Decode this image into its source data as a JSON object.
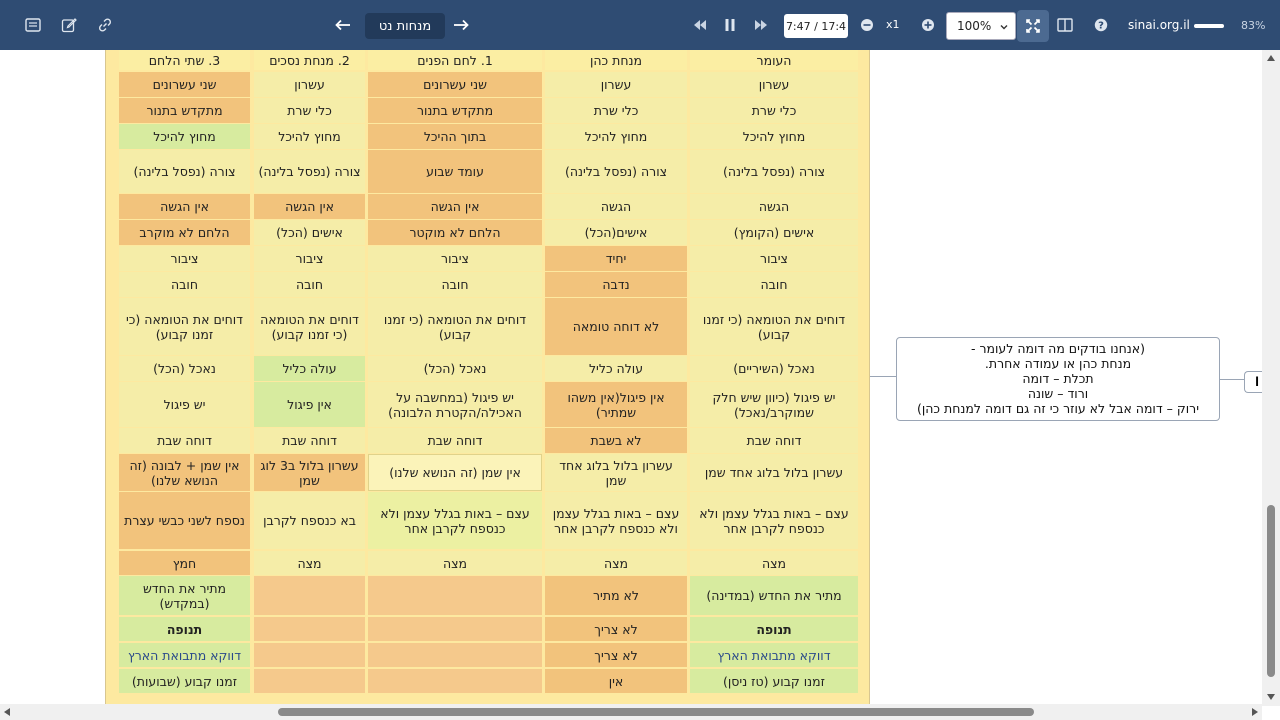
{
  "toolbar": {
    "title": "מנחות נט",
    "time": "7:47 / 17:4",
    "speed": "x1",
    "zoom": "100%",
    "site": "sinai.org.il",
    "volume_percent": "83%",
    "volume_level": 0.83,
    "icons": [
      "menu-icon",
      "edit-icon",
      "link-icon",
      "arrow-left-icon",
      "arrow-right-icon",
      "skip-back-icon",
      "pause-icon",
      "skip-forward-icon",
      "zoom-out-icon",
      "zoom-in-icon",
      "fit-screen-icon",
      "split-view-icon",
      "help-icon"
    ]
  },
  "table": {
    "headers": [
      "העומר",
      "מנחת כהן",
      "1. לחם הפנים",
      "2. מנחת נסכים",
      "3. שתי הלחם"
    ],
    "rows": [
      [
        "עשרון",
        "עשרון",
        "שני עשרונים",
        "עשרון",
        "שני עשרונים"
      ],
      [
        "כלי שרת",
        "כלי שרת",
        "מתקדש בתנור",
        "כלי שרת",
        "מתקדש בתנור"
      ],
      [
        "מחוץ להיכל",
        "מחוץ להיכל",
        "בתוך ההיכל",
        "מחוץ להיכל",
        "מחוץ להיכל"
      ],
      [
        "צורה (נפסל בלינה)",
        "צורה (נפסל בלינה)",
        "עומד שבוע",
        "צורה (נפסל בלינה)",
        "צורה (נפסל בלינה)"
      ],
      [
        "הגשה",
        "הגשה",
        "אין הגשה",
        "אין הגשה",
        "אין הגשה"
      ],
      [
        "אישים (הקומץ)",
        "אישים(הכל)",
        "הלחם לא מוקטר",
        "אישים (הכל)",
        "הלחם לא מוקרב"
      ],
      [
        "ציבור",
        "יחיד",
        "ציבור",
        "ציבור",
        "ציבור"
      ],
      [
        "חובה",
        "נדבה",
        "חובה",
        "חובה",
        "חובה"
      ],
      [
        "דוחים את הטומאה (כי זמנו קבוע)",
        "לא דוחה טומאה",
        "דוחים את הטומאה (כי זמנו קבוע)",
        "דוחים את הטומאה (כי זמנו קבוע)",
        "דוחים את הטומאה (כי זמנו קבוע)"
      ],
      [
        "נאכל (השיריים)",
        "עולה כליל",
        "נאכל (הכל)",
        "עולה כליל",
        "נאכל (הכל)"
      ],
      [
        "יש פיגול (כיוון שיש חלק שמוקרב/נאכל)",
        "אין פיגול(אין משהו שמתיר)",
        "יש פיגול (במחשבה על האכילה/הקטרת הלבונה)",
        "אין פיגול",
        "יש פיגול"
      ],
      [
        "דוחה שבת",
        "לא בשבת",
        "דוחה שבת",
        "דוחה שבת",
        "דוחה שבת"
      ],
      [
        "עשרון בלול בלוג אחד שמן",
        "עשרון בלול בלוג אחד שמן",
        "אין שמן (זה הנושא שלנו)",
        "עשרון בלול ב3 לוג שמן",
        "אין שמן + לבונה (זה הנושא שלנו)"
      ],
      [
        "עצם – באות בגלל עצמן ולא כנספח לקרבן אחר",
        "עצם – באות בגלל עצמן ולא כנספח לקרבן אחר",
        "עצם – באות בגלל עצמן ולא כנספח לקרבן אחר",
        "בא כנספח לקרבן",
        "נספח לשני כבשי עצרת"
      ],
      [
        "מצה",
        "מצה",
        "מצה",
        "מצה",
        "חמץ"
      ],
      [
        "מתיר את החדש (במדינה)",
        "לא מתיר",
        "",
        "",
        "מתיר את החדש (במקדש)"
      ],
      [
        "תנופה",
        "לא צריך",
        "",
        "",
        "תנופה"
      ],
      [
        "דווקא מתבואת הארץ",
        "לא צריך",
        "",
        "",
        "דווקא מתבואת הארץ"
      ],
      [
        "זמנו קבוע (טז ניסן)",
        "אין",
        "",
        "",
        "זמנו קבוע (שבועות)"
      ]
    ]
  },
  "note": {
    "lines": [
      "(אנחנו בודקים מה דומה לעומר -",
      "מנחת כהן או עמודה אחרת.",
      "תכלת – דומה",
      "ורוד – שונה",
      "ירוק – דומה אבל לא עוזר  כי זה גם דומה למנחת כהן)"
    ],
    "node_label": "ן"
  }
}
